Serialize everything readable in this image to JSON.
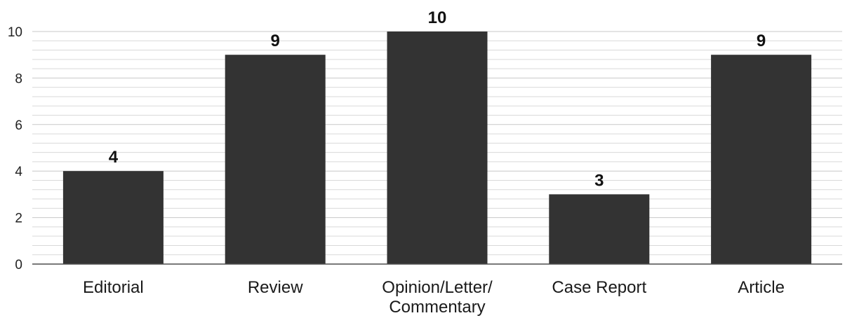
{
  "chart_data": {
    "type": "bar",
    "categories": [
      [
        "Editorial"
      ],
      [
        "Review"
      ],
      [
        "Opinion/Letter/",
        "Commentary"
      ],
      [
        "Case Report"
      ],
      [
        "Article"
      ]
    ],
    "values": [
      4,
      9,
      10,
      3,
      9
    ],
    "data_labels": [
      "4",
      "9",
      "10",
      "3",
      "9"
    ],
    "y_ticks": [
      0,
      2,
      4,
      6,
      8,
      10
    ],
    "ylim": [
      0,
      10
    ],
    "minor_grid_step": 0.4,
    "grid": true,
    "legend": false,
    "bar_color": "#333333",
    "title": "",
    "xlabel": "",
    "ylabel": ""
  }
}
